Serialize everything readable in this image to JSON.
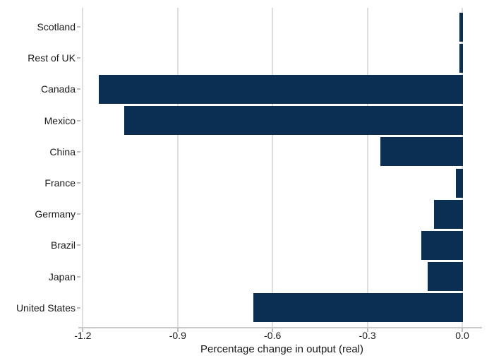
{
  "chart_data": {
    "type": "bar",
    "orientation": "horizontal",
    "title": "",
    "categories": [
      "Scotland",
      "Rest of UK",
      "Canada",
      "Mexico",
      "China",
      "France",
      "Germany",
      "Brazil",
      "Japan",
      "United States"
    ],
    "values": [
      -0.01,
      -0.01,
      -1.15,
      -1.07,
      -0.26,
      -0.02,
      -0.09,
      -0.13,
      -0.11,
      -0.66
    ],
    "xlabel": "Percentage change in output (real)",
    "ylabel": "",
    "xlim": [
      -1.2,
      0.06
    ],
    "xticks": [
      -1.2,
      -0.9,
      -0.6,
      -0.3,
      0.0
    ],
    "xtick_labels": [
      "-1.2",
      "-0.9",
      "-0.6",
      "-0.3",
      "0.0"
    ],
    "grid": "vertical-gridlines-on",
    "legend": "none",
    "colors": {
      "bar": "#0b2e53",
      "gridline": "#dedede",
      "axis_line": "#c9c9c9",
      "tick": "#bdbdbd",
      "text": "#1a1a1a",
      "background": "#ffffff"
    }
  }
}
